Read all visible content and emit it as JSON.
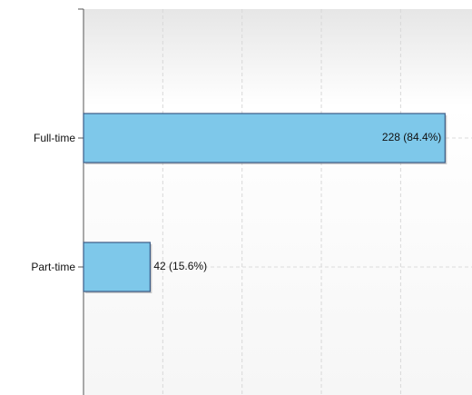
{
  "chart_data": {
    "type": "bar",
    "orientation": "horizontal",
    "categories": [
      "Full-time",
      "Part-time"
    ],
    "values": [
      228,
      42
    ],
    "value_labels": [
      "228 (84.4%)",
      "42 (15.6%)"
    ],
    "color": "#7ec8ea",
    "xlim": [
      0,
      245
    ],
    "xticks": [
      0,
      50,
      100,
      150,
      200
    ],
    "grid": true
  }
}
